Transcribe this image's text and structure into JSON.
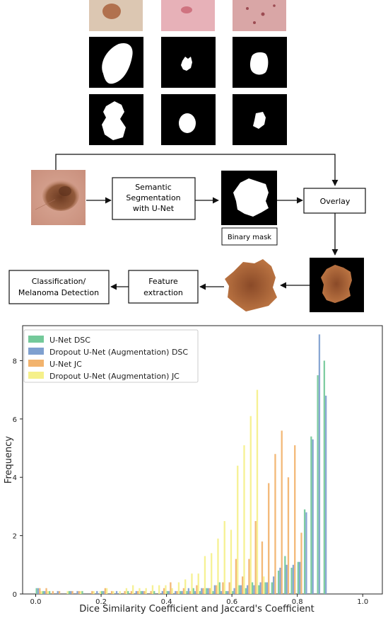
{
  "diagram": {
    "boxes": {
      "segmentation": [
        "Semantic",
        "Segmentation",
        "with U-Net"
      ],
      "overlay": "Overlay",
      "binary_mask": "Binary mask",
      "feature": [
        "Feature",
        "extraction"
      ],
      "classification": [
        "Classification/",
        "Melanoma Detection"
      ]
    },
    "colors": {
      "skin": "#d7a08e",
      "lesion": "#9a5a3a",
      "overlay": "#b8703e"
    }
  },
  "chart_data": {
    "type": "bar",
    "title": "",
    "xlabel": "Dice Similarity Coefficient and Jaccard's Coefficient",
    "ylabel": "Frequency",
    "xlim": [
      -0.04,
      1.06
    ],
    "ylim": [
      0,
      9.2
    ],
    "xticks": [
      "0.0",
      "0.2",
      "0.4",
      "0.6",
      "0.8",
      "1.0"
    ],
    "yticks": [
      "0",
      "2",
      "4",
      "6",
      "8"
    ],
    "legend_position": "top-left",
    "bin_width": 0.02,
    "bin_starts": [
      0.0,
      0.02,
      0.04,
      0.06,
      0.08,
      0.1,
      0.12,
      0.14,
      0.16,
      0.18,
      0.2,
      0.22,
      0.24,
      0.26,
      0.28,
      0.3,
      0.32,
      0.34,
      0.36,
      0.38,
      0.4,
      0.42,
      0.44,
      0.46,
      0.48,
      0.5,
      0.52,
      0.54,
      0.56,
      0.58,
      0.6,
      0.62,
      0.64,
      0.66,
      0.68,
      0.7,
      0.72,
      0.74,
      0.76,
      0.78,
      0.8,
      0.82,
      0.84,
      0.86,
      0.88,
      0.9,
      0.92,
      0.94,
      0.96,
      0.98
    ],
    "series": [
      {
        "name": "U-Net DSC",
        "color": "#74c99a",
        "values": [
          0.2,
          0.1,
          0.1,
          0,
          0,
          0.1,
          0,
          0.1,
          0,
          0,
          0.1,
          0,
          0,
          0,
          0.1,
          0,
          0.1,
          0,
          0.1,
          0,
          0.1,
          0,
          0.1,
          0.1,
          0.2,
          0.1,
          0.2,
          0.1,
          0.4,
          0.1,
          0.1,
          0.3,
          0.2,
          0.4,
          0.3,
          0.4,
          0.4,
          0.8,
          1.3,
          0.9,
          1.1,
          2.9,
          5.4,
          7.5,
          8.0,
          0,
          0,
          0,
          0,
          0
        ]
      },
      {
        "name": "Dropout U-Net (Augmentation) DSC",
        "color": "#7fa0cf",
        "values": [
          0.2,
          0.1,
          0,
          0.1,
          0,
          0.1,
          0.1,
          0,
          0,
          0.1,
          0.1,
          0,
          0.1,
          0,
          0,
          0.1,
          0.1,
          0,
          0,
          0.1,
          0.1,
          0.1,
          0.1,
          0.2,
          0.1,
          0.2,
          0.2,
          0.3,
          0.1,
          0.1,
          0.2,
          0.3,
          0.3,
          0.3,
          0.4,
          0.4,
          0.6,
          0.9,
          1.0,
          1.0,
          1.1,
          2.8,
          5.3,
          8.9,
          6.8,
          0,
          0,
          0,
          0,
          0
        ]
      },
      {
        "name": "U-Net JC",
        "color": "#f2b36d",
        "values": [
          0.2,
          0.2,
          0.1,
          0.1,
          0,
          0.1,
          0.1,
          0,
          0.1,
          0,
          0.2,
          0.1,
          0,
          0.1,
          0.1,
          0.1,
          0.1,
          0.1,
          0,
          0.2,
          0.4,
          0.1,
          0.2,
          0.1,
          0.3,
          0.2,
          0.2,
          0.3,
          0.4,
          0.4,
          1.2,
          0.6,
          1.2,
          2.5,
          1.8,
          3.8,
          4.8,
          5.6,
          4.0,
          5.1,
          2.1,
          0,
          0,
          0,
          0,
          0,
          0,
          0,
          0,
          0
        ]
      },
      {
        "name": "Dropout U-Net (Augmentation) JC",
        "color": "#f5f08a",
        "values": [
          0.1,
          0.1,
          0,
          0,
          0.1,
          0,
          0.1,
          0,
          0.1,
          0.1,
          0.2,
          0.1,
          0.1,
          0.2,
          0.3,
          0.2,
          0.2,
          0.3,
          0.3,
          0.3,
          0.2,
          0.4,
          0.5,
          0.7,
          0.7,
          1.3,
          1.4,
          1.9,
          2.5,
          2.2,
          4.4,
          5.1,
          6.1,
          7.0,
          0.6,
          0,
          0,
          0,
          0,
          0,
          0,
          0,
          0,
          0,
          0,
          0,
          0,
          0,
          0,
          0
        ]
      }
    ]
  }
}
